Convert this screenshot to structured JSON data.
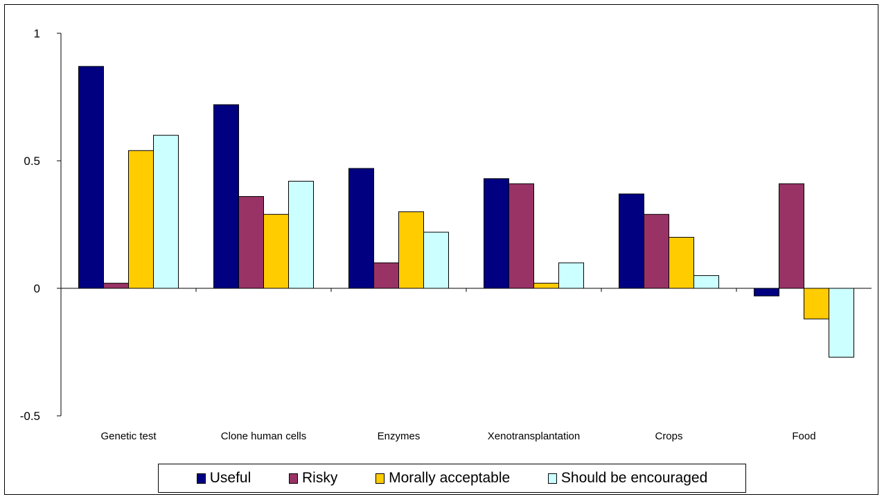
{
  "chart_data": {
    "type": "bar",
    "categories": [
      "Genetic test",
      "Clone human cells",
      "Enzymes",
      "Xenotransplantation",
      "Crops",
      "Food"
    ],
    "series": [
      {
        "name": "Useful",
        "color": "#000080",
        "values": [
          0.87,
          0.72,
          0.47,
          0.43,
          0.37,
          -0.03
        ]
      },
      {
        "name": "Risky",
        "color": "#993366",
        "values": [
          0.02,
          0.36,
          0.1,
          0.41,
          0.29,
          0.41
        ]
      },
      {
        "name": "Morally acceptable",
        "color": "#ffcc00",
        "values": [
          0.54,
          0.29,
          0.3,
          0.02,
          0.2,
          -0.12
        ]
      },
      {
        "name": "Should be encouraged",
        "color": "#ccffff",
        "values": [
          0.6,
          0.42,
          0.22,
          0.1,
          0.05,
          -0.27
        ]
      }
    ],
    "ylim": [
      -0.5,
      1
    ],
    "yticks": [
      1,
      0.5,
      0,
      -0.5
    ],
    "ytick_labels": [
      "1",
      "0.5",
      "0",
      "-0.5"
    ],
    "title": "",
    "xlabel": "",
    "ylabel": "",
    "grid": false,
    "legend_position": "bottom"
  }
}
